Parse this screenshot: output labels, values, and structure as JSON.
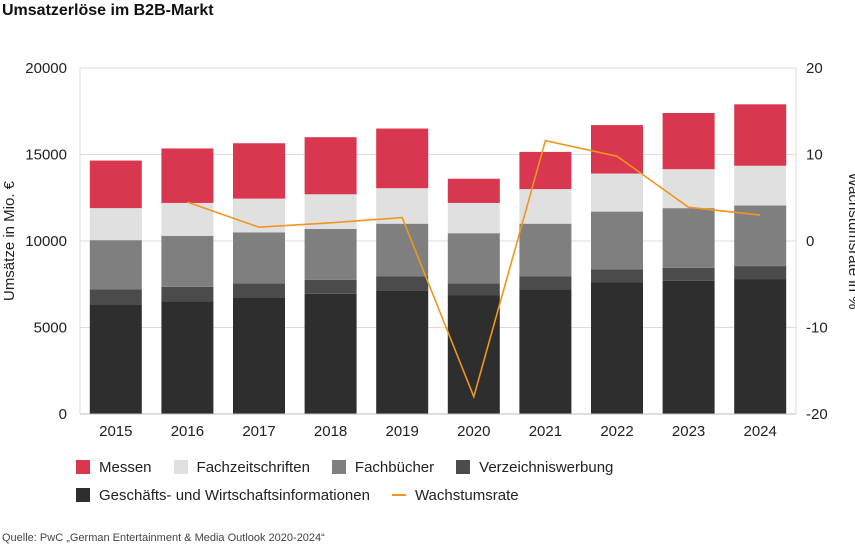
{
  "title": "Umsatzerlöse im B2B-Markt",
  "source": "Quelle: PwC „German Entertainment & Media Outlook 2020-2024“",
  "chart_data": {
    "type": "bar",
    "stacked": true,
    "categories": [
      "2015",
      "2016",
      "2017",
      "2018",
      "2019",
      "2020",
      "2021",
      "2022",
      "2023",
      "2024"
    ],
    "series": [
      {
        "name": "Geschäfts- und Wirtschaftsinformationen",
        "color": "#2e2e2e",
        "values": [
          6300,
          6500,
          6750,
          6950,
          7150,
          6850,
          7200,
          7600,
          7700,
          7800
        ]
      },
      {
        "name": "Verzeichniswerbung",
        "color": "#4b4b4b",
        "values": [
          900,
          850,
          800,
          800,
          800,
          700,
          750,
          750,
          750,
          750
        ]
      },
      {
        "name": "Fachbücher",
        "color": "#7f7f7f",
        "values": [
          2850,
          2950,
          2950,
          2950,
          3050,
          2900,
          3050,
          3350,
          3450,
          3500
        ]
      },
      {
        "name": "Fachzeitschriften",
        "color": "#e0e0e0",
        "values": [
          1850,
          1900,
          1950,
          2000,
          2050,
          1750,
          2000,
          2200,
          2250,
          2300
        ]
      },
      {
        "name": "Messen",
        "color": "#d9374f",
        "values": [
          2750,
          3150,
          3200,
          3300,
          3450,
          1400,
          2150,
          2800,
          3250,
          3550
        ]
      }
    ],
    "line_series": {
      "name": "Wachstumsrate",
      "color": "#f0961e",
      "axis": "right",
      "values": [
        null,
        4.5,
        1.6,
        2.1,
        2.7,
        -18,
        11.6,
        9.8,
        3.9,
        3.0
      ]
    },
    "ylabel": "Umsätze in Mio. €",
    "y2label": "Wachstumsrate in %",
    "ylim": [
      0,
      20000
    ],
    "yticks": [
      0,
      5000,
      10000,
      15000,
      20000
    ],
    "y2lim": [
      -20,
      20
    ],
    "y2ticks": [
      -20,
      -10,
      0,
      10,
      20
    ],
    "grid": "horizontal",
    "legend_position": "bottom-left"
  }
}
